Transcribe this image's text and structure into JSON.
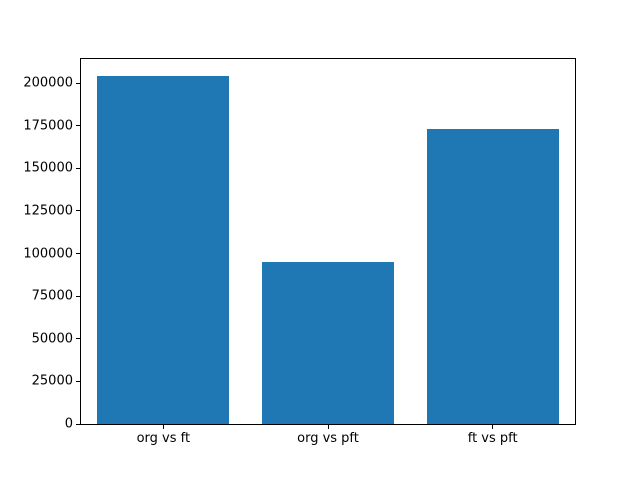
{
  "chart_data": {
    "type": "bar",
    "title": "",
    "xlabel": "",
    "ylabel": "",
    "categories": [
      "org vs ft",
      "org vs pft",
      "ft vs pft"
    ],
    "values": [
      204000,
      95000,
      173000
    ],
    "bar_color": "#1f77b4",
    "bar_width_fraction": 0.2667,
    "ylim": [
      0,
      214200
    ],
    "yticks": [
      0,
      25000,
      50000,
      75000,
      100000,
      125000,
      150000,
      175000,
      200000
    ],
    "ytick_labels": [
      "0",
      "25000",
      "50000",
      "75000",
      "100000",
      "125000",
      "150000",
      "175000",
      "200000"
    ],
    "grid": false,
    "legend": null,
    "spine_color": "#000000",
    "background_color": "#ffffff"
  }
}
